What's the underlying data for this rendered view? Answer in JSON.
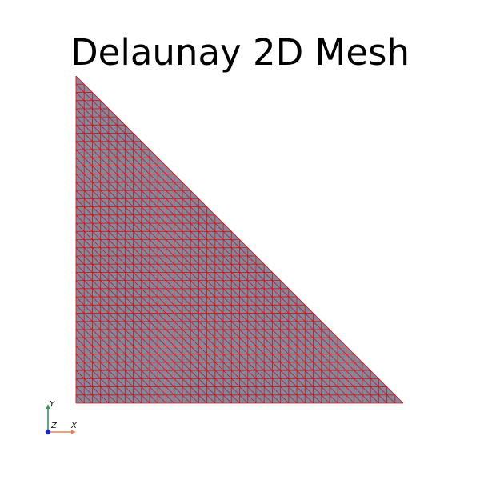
{
  "title": "Delaunay 2D Mesh",
  "mesh": {
    "shape": "right-triangle",
    "subdivisions": 40,
    "face_color": "#7e8aa0",
    "edge_color": "#e01010"
  },
  "axes_widget": {
    "x_label": "X",
    "y_label": "Y",
    "z_label": "Z",
    "x_color": "#e8804c",
    "y_color": "#2e9a5a",
    "z_color": "#1a28c8"
  },
  "background": "#ffffff"
}
